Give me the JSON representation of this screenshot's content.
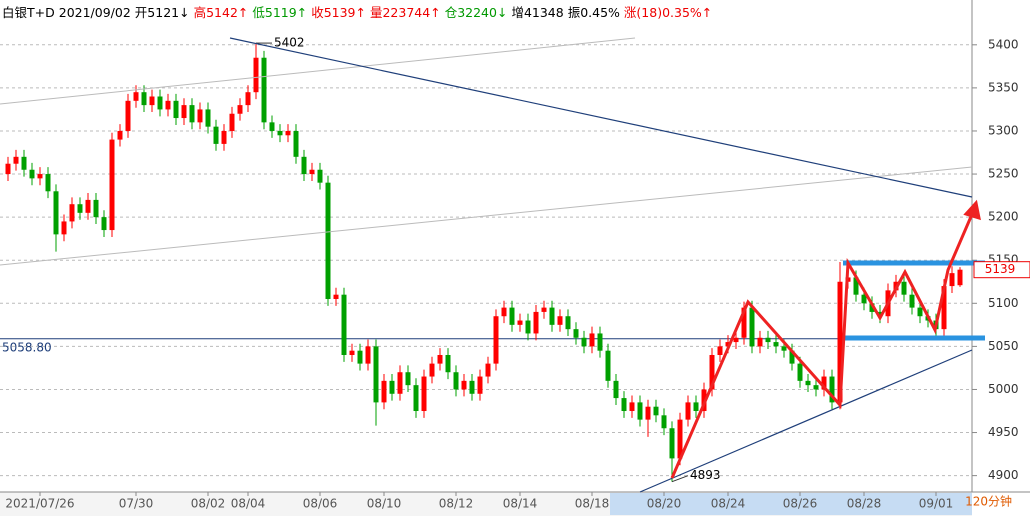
{
  "header": {
    "name": "白银T+D",
    "date": "2021/09/02",
    "open": "开5121↓",
    "high": "高5142↑",
    "low": "低5119↑",
    "close": "收5139↑",
    "volume": "量223744↑",
    "position": "仓32240↓",
    "increase": "增41348",
    "amplitude": "振0.45%",
    "change": "涨(18)0.35%↑"
  },
  "chart_data": {
    "type": "candlestick",
    "period": "120分钟",
    "categories": [
      null,
      null,
      null,
      null,
      "2021/07/26",
      null,
      null,
      null,
      null,
      null,
      null,
      null,
      null,
      null,
      null,
      null,
      "07/30",
      null,
      null,
      null,
      null,
      null,
      null,
      null,
      null,
      "08/02",
      null,
      null,
      null,
      null,
      "08/04",
      null,
      null,
      null,
      null,
      null,
      null,
      null,
      null,
      "08/06",
      null,
      null,
      null,
      null,
      null,
      null,
      null,
      "08/10",
      null,
      null,
      null,
      null,
      null,
      null,
      null,
      null,
      "08/12",
      null,
      null,
      null,
      null,
      null,
      null,
      null,
      "08/14",
      null,
      null,
      null,
      null,
      null,
      null,
      null,
      null,
      "08/18",
      null,
      null,
      null,
      null,
      null,
      null,
      null,
      null,
      "08/20",
      null,
      null,
      null,
      null,
      null,
      null,
      null,
      "08/24",
      null,
      null,
      null,
      null,
      null,
      null,
      null,
      null,
      "08/26",
      null,
      null,
      null,
      null,
      null,
      null,
      null,
      "08/28",
      null,
      null,
      null,
      null,
      null,
      null,
      null,
      null,
      "09/01",
      null,
      null,
      null
    ],
    "open": [
      5250,
      5262,
      5270,
      5255,
      5245,
      5250,
      5230,
      5180,
      5195,
      5215,
      5205,
      5220,
      5200,
      5185,
      5290,
      5300,
      5335,
      5345,
      5330,
      5340,
      5325,
      5335,
      5315,
      5330,
      5310,
      5325,
      5305,
      5285,
      5300,
      5320,
      5330,
      5345,
      5385,
      5310,
      5300,
      5295,
      5300,
      5270,
      5250,
      5255,
      5240,
      5105,
      5110,
      5040,
      5045,
      5030,
      5050,
      4985,
      5010,
      4995,
      5020,
      5005,
      4975,
      5015,
      5030,
      5040,
      5020,
      5000,
      5010,
      4995,
      5015,
      5030,
      5085,
      5095,
      5075,
      5080,
      5065,
      5090,
      5095,
      5075,
      5085,
      5070,
      5060,
      5050,
      5065,
      5045,
      5010,
      4990,
      4975,
      4985,
      4965,
      4980,
      4970,
      4955,
      4920,
      4965,
      4985,
      4975,
      5000,
      5040,
      5050,
      5055,
      5060,
      5095,
      5050,
      5060,
      5055,
      5050,
      5045,
      5030,
      5010,
      5005,
      5000,
      5015,
      4985,
      5125,
      5130,
      5110,
      5100,
      5090,
      5085,
      5115,
      5125,
      5110,
      5095,
      5085,
      5080,
      5070,
      5120,
      5121
    ],
    "high": [
      5270,
      5278,
      5278,
      5263,
      5258,
      5258,
      5238,
      5203,
      5223,
      5223,
      5228,
      5228,
      5208,
      5298,
      5308,
      5343,
      5353,
      5353,
      5348,
      5348,
      5343,
      5343,
      5338,
      5338,
      5333,
      5333,
      5313,
      5308,
      5328,
      5338,
      5353,
      5402,
      5393,
      5318,
      5308,
      5308,
      5308,
      5278,
      5263,
      5263,
      5248,
      5118,
      5118,
      5053,
      5053,
      5058,
      5058,
      5018,
      5018,
      5028,
      5028,
      5013,
      5023,
      5038,
      5048,
      5048,
      5028,
      5018,
      5018,
      5023,
      5038,
      5093,
      5103,
      5103,
      5088,
      5088,
      5098,
      5103,
      5103,
      5093,
      5093,
      5078,
      5068,
      5073,
      5073,
      5053,
      5018,
      4998,
      4993,
      4993,
      4988,
      4988,
      4978,
      4963,
      4973,
      4993,
      4993,
      5008,
      5048,
      5058,
      5063,
      5068,
      5102,
      5103,
      5068,
      5068,
      5063,
      5058,
      5053,
      5038,
      5018,
      5013,
      5023,
      5023,
      5148,
      5138,
      5138,
      5118,
      5108,
      5098,
      5123,
      5133,
      5133,
      5118,
      5103,
      5093,
      5088,
      5128,
      5143,
      5142
    ],
    "low": [
      5242,
      5254,
      5247,
      5237,
      5237,
      5222,
      5160,
      5172,
      5187,
      5197,
      5197,
      5192,
      5177,
      5177,
      5282,
      5292,
      5327,
      5322,
      5322,
      5317,
      5317,
      5307,
      5307,
      5302,
      5302,
      5297,
      5277,
      5277,
      5292,
      5312,
      5322,
      5337,
      5302,
      5292,
      5287,
      5287,
      5262,
      5242,
      5242,
      5232,
      5097,
      5097,
      5032,
      5032,
      5022,
      5022,
      4958,
      4977,
      4987,
      4987,
      4997,
      4967,
      4967,
      5007,
      5022,
      5012,
      4992,
      4992,
      4987,
      4987,
      5007,
      5022,
      5077,
      5067,
      5067,
      5057,
      5057,
      5082,
      5067,
      5067,
      5062,
      5052,
      5042,
      5042,
      5037,
      5002,
      4982,
      4967,
      4967,
      4957,
      4945,
      4962,
      4947,
      4893,
      4912,
      4957,
      4967,
      4967,
      4992,
      5032,
      5042,
      5047,
      5052,
      5042,
      5042,
      5047,
      5042,
      5037,
      5022,
      5002,
      4997,
      4992,
      4992,
      4977,
      4977,
      5117,
      5102,
      5092,
      5082,
      5077,
      5077,
      5107,
      5102,
      5087,
      5077,
      5072,
      5062,
      5062,
      5112,
      5119
    ],
    "close": [
      5262,
      5270,
      5255,
      5245,
      5250,
      5230,
      5180,
      5195,
      5215,
      5205,
      5220,
      5200,
      5185,
      5290,
      5300,
      5335,
      5345,
      5330,
      5340,
      5325,
      5335,
      5315,
      5330,
      5310,
      5325,
      5305,
      5285,
      5300,
      5320,
      5330,
      5345,
      5385,
      5310,
      5300,
      5295,
      5300,
      5270,
      5250,
      5255,
      5240,
      5105,
      5110,
      5040,
      5045,
      5030,
      5050,
      4985,
      5010,
      4995,
      5020,
      5005,
      4975,
      5015,
      5030,
      5040,
      5020,
      5000,
      5010,
      4995,
      5015,
      5030,
      5085,
      5095,
      5075,
      5080,
      5065,
      5090,
      5095,
      5075,
      5085,
      5070,
      5060,
      5050,
      5065,
      5045,
      5010,
      4990,
      4975,
      4985,
      4965,
      4980,
      4970,
      4955,
      4920,
      4965,
      4985,
      4975,
      5000,
      5040,
      5050,
      5055,
      5060,
      5095,
      5050,
      5060,
      5055,
      5050,
      5045,
      5030,
      5010,
      5005,
      5000,
      5015,
      4985,
      5125,
      5130,
      5110,
      5100,
      5090,
      5085,
      5115,
      5125,
      5110,
      5095,
      5085,
      5080,
      5070,
      5120,
      5135,
      5139
    ],
    "up_color": "#ff0000",
    "down_color": "#00a000",
    "ylim": [
      4881,
      5452
    ],
    "yticks": [
      4900,
      4950,
      5000,
      5050,
      5100,
      5150,
      5200,
      5250,
      5300,
      5350,
      5400
    ],
    "grid": true,
    "max_label": 5402,
    "min_label": 4893,
    "last_label": 5139,
    "ref_line": {
      "value": 5058.8,
      "label": "5058.80"
    }
  }
}
